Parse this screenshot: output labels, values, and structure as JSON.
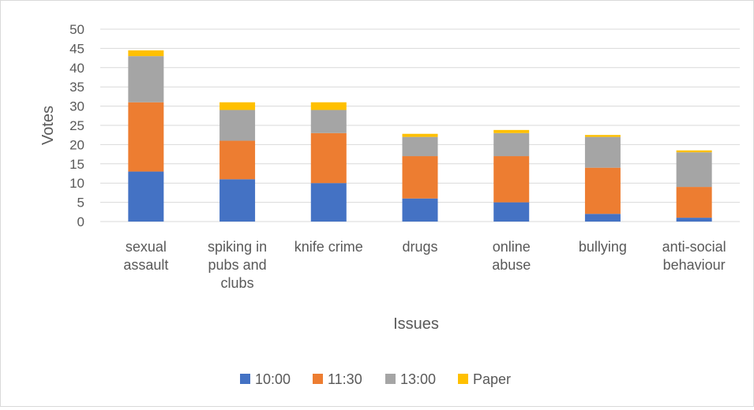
{
  "chart_data": {
    "type": "bar",
    "stacked": true,
    "title": "",
    "xlabel": "Issues",
    "ylabel": "Votes",
    "ylim": [
      0,
      50
    ],
    "ytick_step": 5,
    "grid": true,
    "legend_position": "bottom",
    "categories": [
      [
        "sexual",
        "assault"
      ],
      [
        "spiking in",
        "pubs and",
        "clubs"
      ],
      [
        "knife crime"
      ],
      [
        "drugs"
      ],
      [
        "online",
        "abuse"
      ],
      [
        "bullying"
      ],
      [
        "anti-social",
        "behaviour"
      ]
    ],
    "series": [
      {
        "name": "10:00",
        "color": "#4472c4",
        "values": [
          13,
          11,
          10,
          6,
          5,
          2,
          1
        ]
      },
      {
        "name": "11:30",
        "color": "#ed7d31",
        "values": [
          18,
          10,
          13,
          11,
          12,
          12,
          8
        ]
      },
      {
        "name": "13:00",
        "color": "#a5a5a5",
        "values": [
          12,
          8,
          6,
          5,
          6,
          8,
          9
        ]
      },
      {
        "name": "Paper",
        "color": "#ffc000",
        "values": [
          1.5,
          2,
          2,
          0.8,
          0.8,
          0.5,
          0.5
        ]
      }
    ]
  }
}
